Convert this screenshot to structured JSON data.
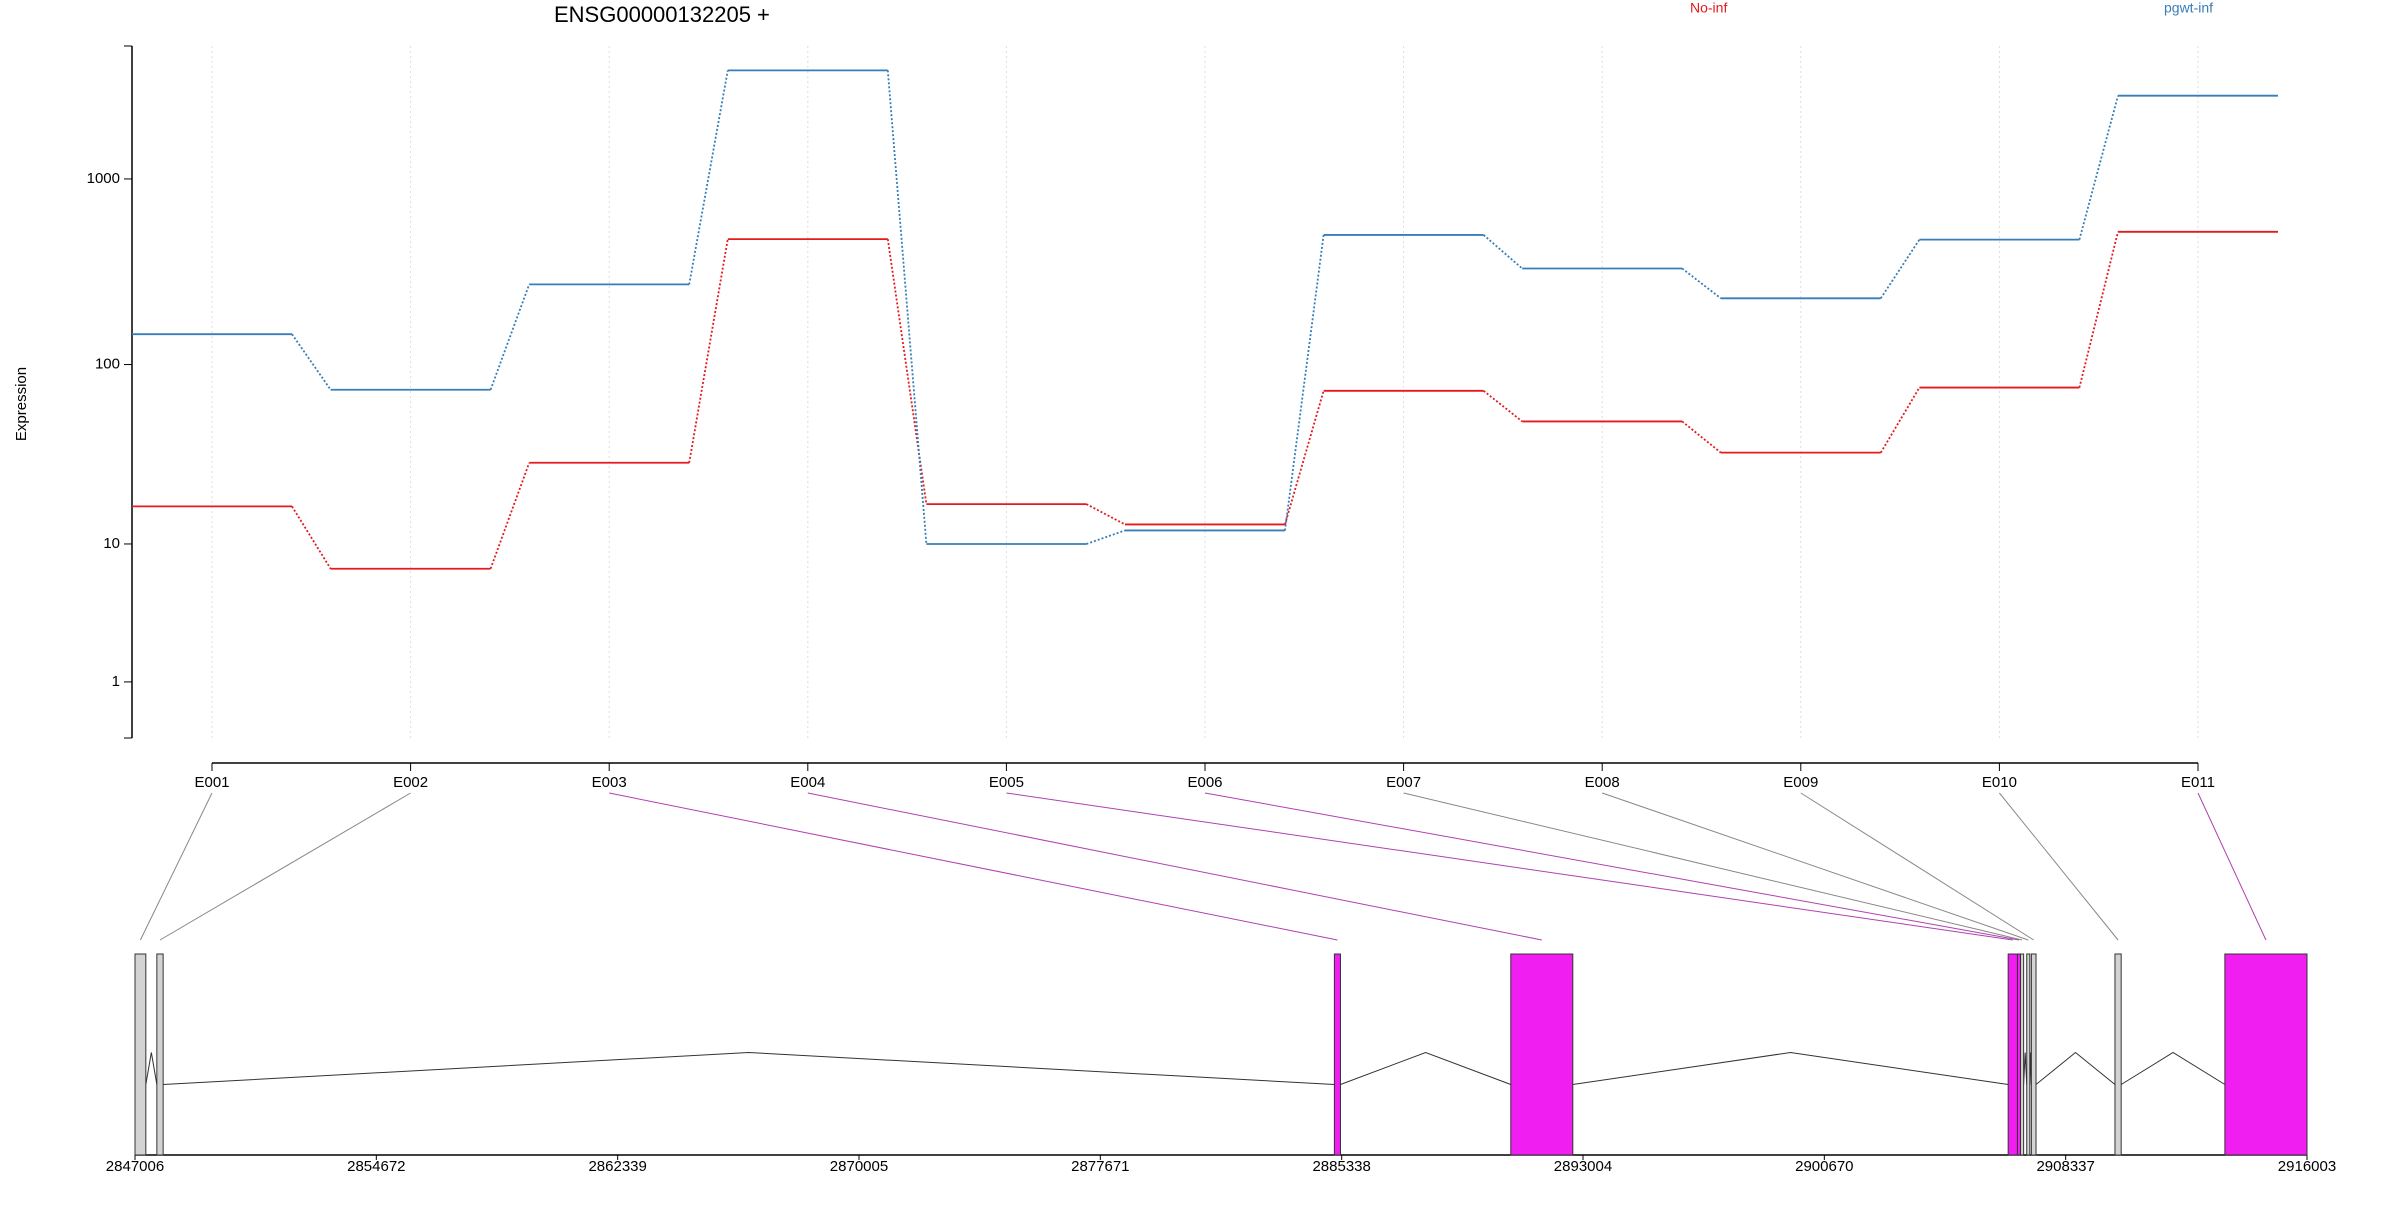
{
  "chart_data": {
    "type": "step",
    "title": "ENSG00000132205 +",
    "ylabel": "Expression",
    "yscale": "log1p",
    "ylim": [
      0,
      5175
    ],
    "yticks": [
      1,
      10,
      100,
      1000
    ],
    "categories": [
      "E001",
      "E002",
      "E003",
      "E004",
      "E005",
      "E006",
      "E007",
      "E008",
      "E009",
      "E010",
      "E011"
    ],
    "series": [
      {
        "name": "No-inf",
        "color": "#e41a1c",
        "values": [
          16.5,
          7.1,
          29,
          475,
          17,
          13,
          72,
          49,
          33,
          75,
          520
        ]
      },
      {
        "name": "pgwt-inf",
        "color": "#377eb8",
        "values": [
          146,
          73,
          271,
          3830,
          10,
          12,
          500,
          330,
          228,
          472,
          2800
        ]
      }
    ],
    "gene_model": {
      "xlim": [
        2847006,
        2916003
      ],
      "xticks": [
        2847006,
        2854672,
        2862339,
        2870005,
        2877671,
        2885338,
        2893004,
        2900670,
        2908337,
        2916003
      ],
      "exons": [
        {
          "start": 2847006,
          "end": 2847350,
          "color": "#d3d3d3"
        },
        {
          "start": 2847700,
          "end": 2847900,
          "color": "#d3d3d3"
        },
        {
          "start": 2885106,
          "end": 2885300,
          "color": "#f01ef0"
        },
        {
          "start": 2890710,
          "end": 2892680,
          "color": "#f01ef0"
        },
        {
          "start": 2906510,
          "end": 2906805,
          "color": "#f01ef0"
        },
        {
          "start": 2906805,
          "end": 2906903,
          "color": "#f01ef0"
        },
        {
          "start": 2906903,
          "end": 2907001,
          "color": "#d3d3d3"
        },
        {
          "start": 2907100,
          "end": 2907198,
          "color": "#d3d3d3"
        },
        {
          "start": 2907247,
          "end": 2907395,
          "color": "#d3d3d3"
        },
        {
          "start": 2909903,
          "end": 2910100,
          "color": "#d3d3d3"
        },
        {
          "start": 2913394,
          "end": 2916003,
          "color": "#f01ef0"
        }
      ]
    }
  }
}
